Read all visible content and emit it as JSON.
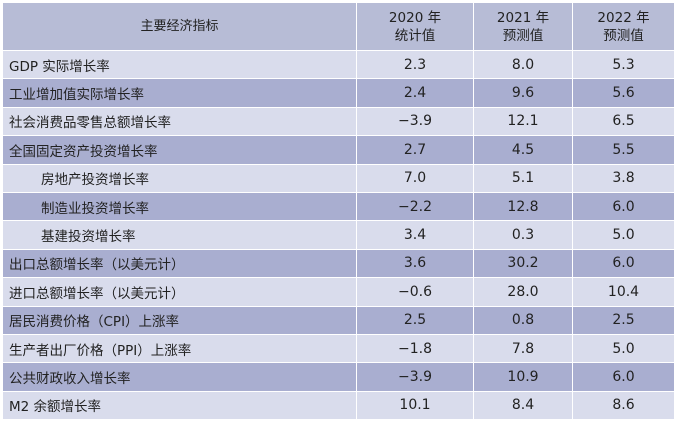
{
  "table": {
    "headers": {
      "indicator": "主要经济指标",
      "col1": [
        "2020 年",
        "统计值"
      ],
      "col2": [
        "2021 年",
        "预测值"
      ],
      "col3": [
        "2022 年",
        "预测值"
      ]
    },
    "rows": [
      {
        "name": "GDP 实际增长率",
        "indent": false,
        "v2020": "2.3",
        "v2021": "8.0",
        "v2022": "5.3"
      },
      {
        "name": "工业增加值实际增长率",
        "indent": false,
        "v2020": "2.4",
        "v2021": "9.6",
        "v2022": "5.6"
      },
      {
        "name": "社会消费品零售总额增长率",
        "indent": false,
        "v2020": "−3.9",
        "v2021": "12.1",
        "v2022": "6.5"
      },
      {
        "name": "全国固定资产投资增长率",
        "indent": false,
        "v2020": "2.7",
        "v2021": "4.5",
        "v2022": "5.5"
      },
      {
        "name": "房地产投资增长率",
        "indent": true,
        "v2020": "7.0",
        "v2021": "5.1",
        "v2022": "3.8"
      },
      {
        "name": "制造业投资增长率",
        "indent": true,
        "v2020": "−2.2",
        "v2021": "12.8",
        "v2022": "6.0"
      },
      {
        "name": "基建投资增长率",
        "indent": true,
        "v2020": "3.4",
        "v2021": "0.3",
        "v2022": "5.0"
      },
      {
        "name": "出口总额增长率（以美元计）",
        "indent": false,
        "v2020": "3.6",
        "v2021": "30.2",
        "v2022": "6.0"
      },
      {
        "name": "进口总额增长率（以美元计）",
        "indent": false,
        "v2020": "−0.6",
        "v2021": "28.0",
        "v2022": "10.4"
      },
      {
        "name": "居民消费价格（CPI）上涨率",
        "indent": false,
        "v2020": "2.5",
        "v2021": "0.8",
        "v2022": "2.5"
      },
      {
        "name": "生产者出厂价格（PPI）上涨率",
        "indent": false,
        "v2020": "−1.8",
        "v2021": "7.8",
        "v2022": "5.0"
      },
      {
        "name": "公共财政收入增长率",
        "indent": false,
        "v2020": "−3.9",
        "v2021": "10.9",
        "v2022": "6.0"
      },
      {
        "name": "M2 余额增长率",
        "indent": false,
        "v2020": "10.1",
        "v2021": "8.4",
        "v2022": "8.6"
      }
    ],
    "colors": {
      "header_bg": "#b7bcd6",
      "row_light": "#d9dcec",
      "row_dark": "#a9aed0",
      "text": "#222222"
    }
  }
}
